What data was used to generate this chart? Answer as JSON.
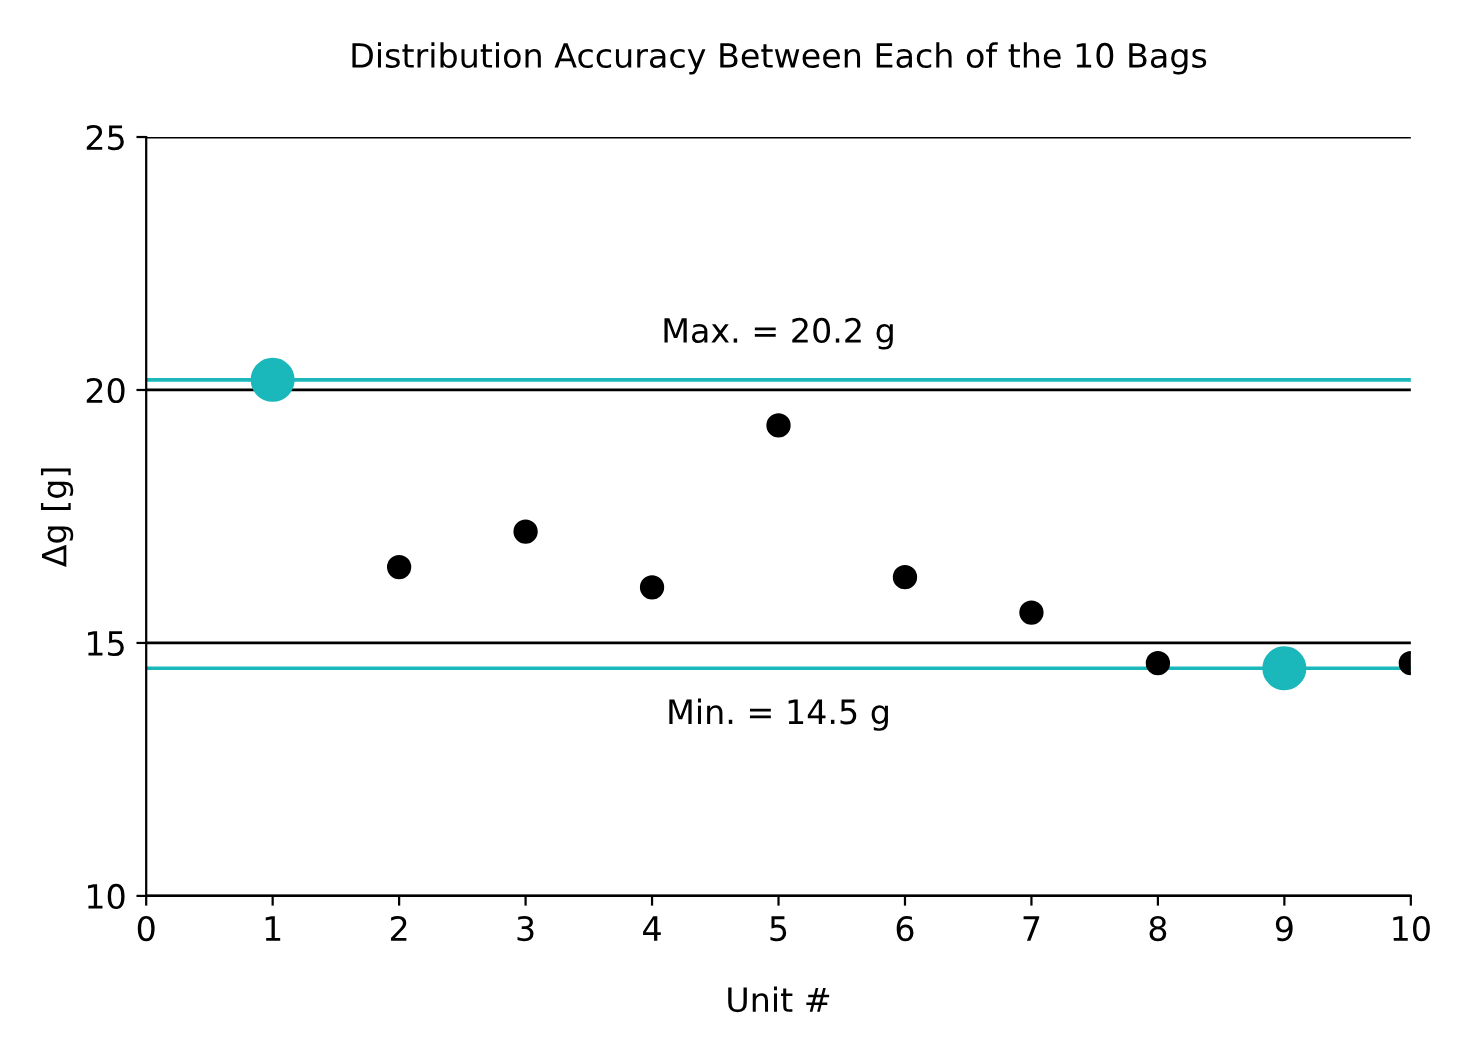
{
  "chart_data": {
    "type": "scatter",
    "title": "Distribution Accuracy Between Each of the 10 Bags",
    "xlabel": "Unit #",
    "ylabel": "Δg [g]",
    "xlim": [
      0,
      10
    ],
    "xticks": [
      0,
      1,
      2,
      3,
      4,
      5,
      6,
      7,
      8,
      9,
      10
    ],
    "ylim": [
      10,
      25
    ],
    "yticks": [
      10,
      15,
      20,
      25
    ],
    "grid": "y",
    "marker": "circle",
    "series": [
      {
        "color": "#000000",
        "x": [
          2,
          3,
          4,
          5,
          6,
          7,
          8,
          10
        ],
        "values": [
          16.5,
          17.2,
          16.1,
          19.3,
          16.3,
          15.6,
          14.6,
          14.6
        ]
      },
      {
        "color": "#1ab7bb",
        "x": [
          1,
          9
        ],
        "values": [
          20.2,
          14.5
        ]
      }
    ],
    "ref_lines": [
      {
        "axis": "y",
        "value": 20.2,
        "label": "Max. = 20.2 g",
        "color": "#1ab7bb"
      },
      {
        "axis": "y",
        "value": 14.5,
        "label": "Min. = 14.5 g",
        "color": "#1ab7bb"
      }
    ]
  }
}
